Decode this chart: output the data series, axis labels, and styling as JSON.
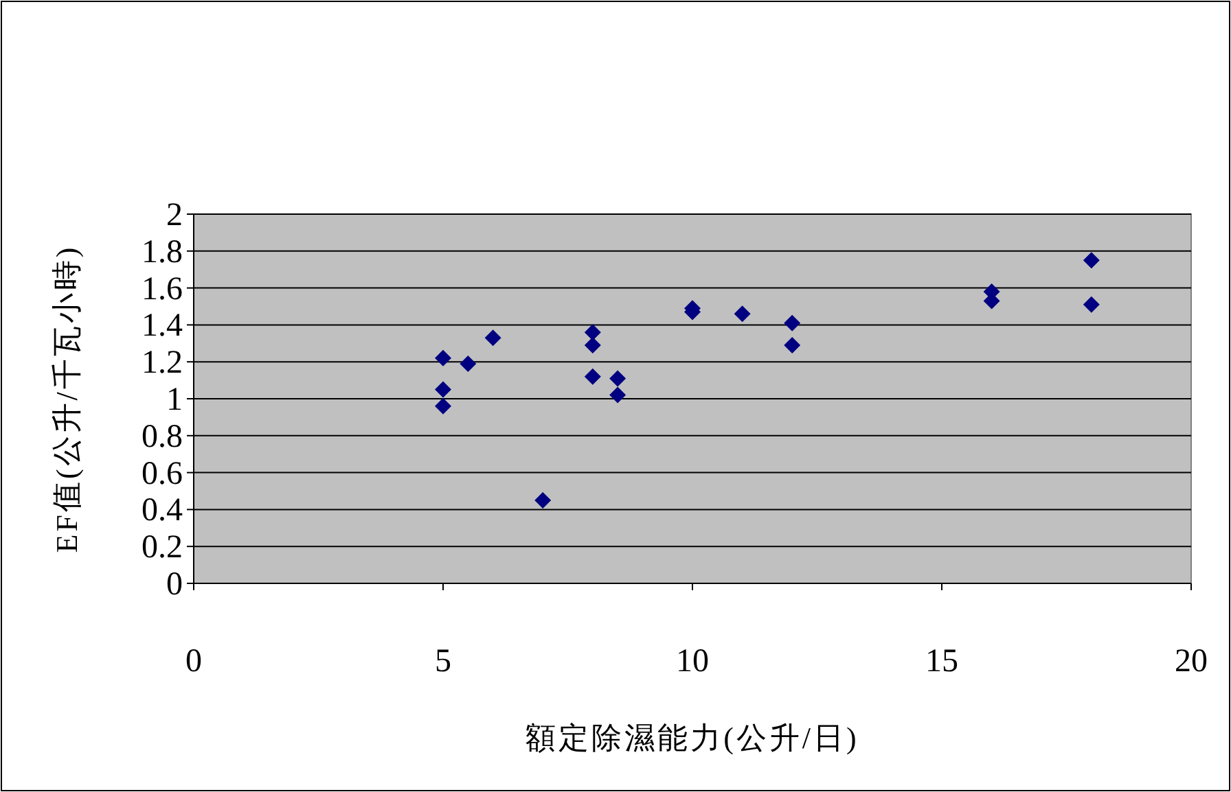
{
  "chart_data": {
    "type": "scatter",
    "xlabel": "額定除濕能力(公升/日)",
    "ylabel": "EF值(公升/千瓦小時)",
    "x": [
      5,
      5,
      5,
      5.5,
      6,
      7,
      8,
      8,
      8,
      8.5,
      8.5,
      10,
      10,
      11,
      12,
      12,
      16,
      16,
      18,
      18
    ],
    "values": [
      1.22,
      1.05,
      0.96,
      1.19,
      1.33,
      0.45,
      1.36,
      1.29,
      1.12,
      1.11,
      1.02,
      1.49,
      1.47,
      1.46,
      1.41,
      1.29,
      1.58,
      1.53,
      1.75,
      1.51
    ],
    "color": "#000080",
    "marker": "diamond",
    "grid": "y",
    "xlim": [
      0,
      20
    ],
    "ylim": [
      0,
      2
    ],
    "xticks": [
      0,
      5,
      10,
      15,
      20
    ],
    "yticks": [
      0,
      0.2,
      0.4,
      0.6,
      0.8,
      1,
      1.2,
      1.4,
      1.6,
      1.8,
      2
    ]
  }
}
